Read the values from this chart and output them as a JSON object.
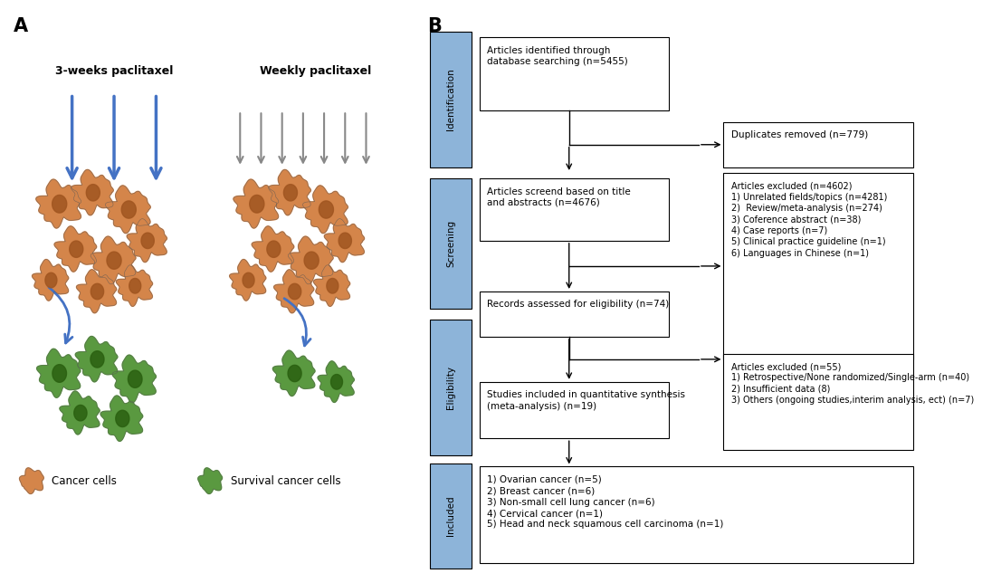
{
  "panel_a_label": "A",
  "panel_b_label": "B",
  "title_3weeks": "3-weeks paclitaxel",
  "title_weekly": "Weekly paclitaxel",
  "legend_cancer": "Cancer cells",
  "legend_survival": "Survival cancer cells",
  "sidebar_labels": [
    "Identification",
    "Screening",
    "Eligibility",
    "Included"
  ],
  "sidebar_color": "#8db4d9",
  "blue_arrow_color": "#4472c4",
  "gray_arrow_color": "#888888",
  "box1_text": "Articles identified through\ndatabase searching (n=5455)",
  "box_dup_text": "Duplicates removed (n=779)",
  "box2_text": "Articles screend based on title\nand abstracts (n=4676)",
  "box_excl1_text": "Articles excluded (n=4602)\n1) Unrelated fields/topics (n=4281)\n2)  Review/meta-analysis (n=274)\n3) Coference abstract (n=38)\n4) Case reports (n=7)\n5) Clinical practice guideline (n=1)\n6) Languages in Chinese (n=1)",
  "box3_text": "Records assessed for eligibility (n=74)",
  "box_excl2_text": "Articles excluded (n=55)\n1) Retrospective/None randomized/Single-arm (n=40)\n2) Insufficient data (8)\n3) Others (ongoing studies,interim analysis, ect) (n=7)",
  "box4_text": "Studies included in quantitative synthesis\n(meta-analysis) (n=19)",
  "box5_text": "1) Ovarian cancer (n=5)\n2) Breast cancer (n=6)\n3) Non-small cell lung cancer (n=6)\n4) Cervical cancer (n=1)\n5) Head and neck squamous cell carcinoma (n=1)",
  "background_color": "#ffffff",
  "orange_cell_color": "#d4854a",
  "orange_dark_color": "#a05520",
  "green_cell_color": "#5a9940",
  "green_dark_color": "#2a6010"
}
